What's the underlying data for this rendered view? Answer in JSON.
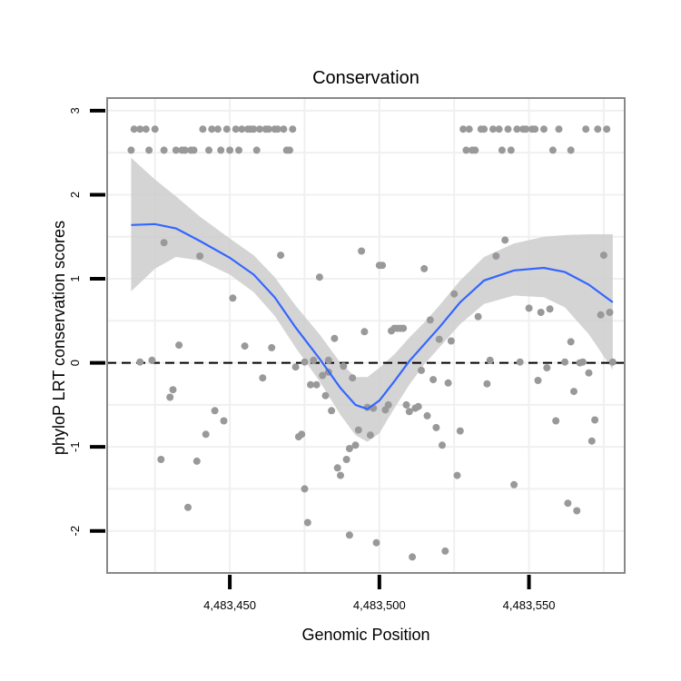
{
  "chart_data": {
    "type": "scatter",
    "title": "Conservation",
    "xlabel": "Genomic Position",
    "ylabel": "phyloP LRT conservation scores",
    "xlim": [
      4483409,
      4483582
    ],
    "ylim": [
      -2.5,
      3.15
    ],
    "x_ticks": [
      {
        "value": 4483450,
        "label": "4,483,450"
      },
      {
        "value": 4483500,
        "label": "4,483,500"
      },
      {
        "value": 4483550,
        "label": "4,483,550"
      }
    ],
    "y_ticks": [
      {
        "value": 3,
        "label": "3"
      },
      {
        "value": 2,
        "label": "2"
      },
      {
        "value": 1,
        "label": "1"
      },
      {
        "value": 0,
        "label": "0"
      },
      {
        "value": -1,
        "label": "-1"
      },
      {
        "value": -2,
        "label": "-2"
      }
    ],
    "grid": true,
    "reference_line": {
      "y": 0,
      "style": "dashed"
    },
    "colors": {
      "points": "#999999",
      "smooth_line": "#3366ff",
      "ribbon": "#cccccc",
      "panel_border": "#888888",
      "grid": "#f0f0f0"
    },
    "series": [
      {
        "type": "scatter",
        "points": [
          {
            "x": 4483417,
            "y": 2.53
          },
          {
            "x": 4483418,
            "y": 2.78
          },
          {
            "x": 4483420,
            "y": 2.78
          },
          {
            "x": 4483420,
            "y": 0.01
          },
          {
            "x": 4483422,
            "y": 2.78
          },
          {
            "x": 4483423,
            "y": 2.53
          },
          {
            "x": 4483424,
            "y": 0.03
          },
          {
            "x": 4483425,
            "y": 2.78
          },
          {
            "x": 4483427,
            "y": -1.15
          },
          {
            "x": 4483428,
            "y": 1.43
          },
          {
            "x": 4483428,
            "y": 2.53
          },
          {
            "x": 4483430,
            "y": -0.41
          },
          {
            "x": 4483431,
            "y": -0.32
          },
          {
            "x": 4483432,
            "y": 2.53
          },
          {
            "x": 4483433,
            "y": 0.21
          },
          {
            "x": 4483434,
            "y": 2.53
          },
          {
            "x": 4483435,
            "y": 2.53
          },
          {
            "x": 4483436,
            "y": -1.72
          },
          {
            "x": 4483437,
            "y": 2.53
          },
          {
            "x": 4483438,
            "y": 2.53
          },
          {
            "x": 4483439,
            "y": -1.17
          },
          {
            "x": 4483440,
            "y": 1.27
          },
          {
            "x": 4483441,
            "y": 2.78
          },
          {
            "x": 4483442,
            "y": -0.85
          },
          {
            "x": 4483443,
            "y": 2.53
          },
          {
            "x": 4483444,
            "y": 2.78
          },
          {
            "x": 4483445,
            "y": -0.57
          },
          {
            "x": 4483446,
            "y": 2.78
          },
          {
            "x": 4483447,
            "y": 2.53
          },
          {
            "x": 4483448,
            "y": -0.69
          },
          {
            "x": 4483449,
            "y": 2.78
          },
          {
            "x": 4483450,
            "y": 2.53
          },
          {
            "x": 4483451,
            "y": 0.77
          },
          {
            "x": 4483452,
            "y": 2.78
          },
          {
            "x": 4483453,
            "y": 2.53
          },
          {
            "x": 4483454,
            "y": 2.78
          },
          {
            "x": 4483455,
            "y": 0.2
          },
          {
            "x": 4483456,
            "y": 2.78
          },
          {
            "x": 4483457,
            "y": 2.78
          },
          {
            "x": 4483458,
            "y": 2.78
          },
          {
            "x": 4483459,
            "y": 2.53
          },
          {
            "x": 4483460,
            "y": 2.78
          },
          {
            "x": 4483461,
            "y": -0.18
          },
          {
            "x": 4483462,
            "y": 2.78
          },
          {
            "x": 4483463,
            "y": 2.78
          },
          {
            "x": 4483464,
            "y": 0.18
          },
          {
            "x": 4483465,
            "y": 2.78
          },
          {
            "x": 4483466,
            "y": 2.78
          },
          {
            "x": 4483467,
            "y": 1.28
          },
          {
            "x": 4483468,
            "y": 2.78
          },
          {
            "x": 4483469,
            "y": 2.53
          },
          {
            "x": 4483470,
            "y": 2.53
          },
          {
            "x": 4483471,
            "y": 2.78
          },
          {
            "x": 4483472,
            "y": -0.05
          },
          {
            "x": 4483473,
            "y": -0.88
          },
          {
            "x": 4483474,
            "y": -0.85
          },
          {
            "x": 4483475,
            "y": 0.01
          },
          {
            "x": 4483475,
            "y": -1.5
          },
          {
            "x": 4483476,
            "y": -1.9
          },
          {
            "x": 4483477,
            "y": -0.26
          },
          {
            "x": 4483478,
            "y": 0.03
          },
          {
            "x": 4483479,
            "y": -0.26
          },
          {
            "x": 4483480,
            "y": 1.02
          },
          {
            "x": 4483481,
            "y": -0.15
          },
          {
            "x": 4483482,
            "y": -0.39
          },
          {
            "x": 4483483,
            "y": 0.03
          },
          {
            "x": 4483483,
            "y": -0.11
          },
          {
            "x": 4483484,
            "y": -0.57
          },
          {
            "x": 4483485,
            "y": 0.29
          },
          {
            "x": 4483486,
            "y": -1.25
          },
          {
            "x": 4483487,
            "y": -1.34
          },
          {
            "x": 4483488,
            "y": -0.04
          },
          {
            "x": 4483489,
            "y": -1.15
          },
          {
            "x": 4483490,
            "y": -2.05
          },
          {
            "x": 4483490,
            "y": -1.02
          },
          {
            "x": 4483491,
            "y": -0.18
          },
          {
            "x": 4483492,
            "y": -0.98
          },
          {
            "x": 4483493,
            "y": -0.8
          },
          {
            "x": 4483494,
            "y": 1.33
          },
          {
            "x": 4483495,
            "y": 0.37
          },
          {
            "x": 4483496,
            "y": -0.53
          },
          {
            "x": 4483497,
            "y": -0.86
          },
          {
            "x": 4483498,
            "y": -0.54
          },
          {
            "x": 4483499,
            "y": -2.14
          },
          {
            "x": 4483500,
            "y": 1.16
          },
          {
            "x": 4483501,
            "y": 1.16
          },
          {
            "x": 4483502,
            "y": -0.56
          },
          {
            "x": 4483503,
            "y": -0.5
          },
          {
            "x": 4483504,
            "y": 0.38
          },
          {
            "x": 4483505,
            "y": 0.41
          },
          {
            "x": 4483506,
            "y": 0.41
          },
          {
            "x": 4483507,
            "y": 0.41
          },
          {
            "x": 4483508,
            "y": 0.41
          },
          {
            "x": 4483509,
            "y": -0.5
          },
          {
            "x": 4483510,
            "y": -0.58
          },
          {
            "x": 4483511,
            "y": -2.31
          },
          {
            "x": 4483512,
            "y": -0.54
          },
          {
            "x": 4483513,
            "y": -0.52
          },
          {
            "x": 4483514,
            "y": -0.09
          },
          {
            "x": 4483515,
            "y": 1.12
          },
          {
            "x": 4483516,
            "y": -0.63
          },
          {
            "x": 4483517,
            "y": 0.51
          },
          {
            "x": 4483518,
            "y": -0.2
          },
          {
            "x": 4483519,
            "y": -0.77
          },
          {
            "x": 4483520,
            "y": 0.28
          },
          {
            "x": 4483521,
            "y": -0.98
          },
          {
            "x": 4483522,
            "y": -2.24
          },
          {
            "x": 4483523,
            "y": -0.24
          },
          {
            "x": 4483524,
            "y": 0.26
          },
          {
            "x": 4483525,
            "y": 0.82
          },
          {
            "x": 4483526,
            "y": -1.34
          },
          {
            "x": 4483527,
            "y": -0.81
          },
          {
            "x": 4483528,
            "y": 2.78
          },
          {
            "x": 4483529,
            "y": 2.53
          },
          {
            "x": 4483530,
            "y": 2.78
          },
          {
            "x": 4483531,
            "y": 2.53
          },
          {
            "x": 4483532,
            "y": 2.53
          },
          {
            "x": 4483533,
            "y": 0.55
          },
          {
            "x": 4483534,
            "y": 2.78
          },
          {
            "x": 4483535,
            "y": 2.78
          },
          {
            "x": 4483536,
            "y": -0.25
          },
          {
            "x": 4483537,
            "y": 0.03
          },
          {
            "x": 4483538,
            "y": 2.78
          },
          {
            "x": 4483539,
            "y": 1.27
          },
          {
            "x": 4483540,
            "y": 2.78
          },
          {
            "x": 4483541,
            "y": 2.53
          },
          {
            "x": 4483542,
            "y": 1.46
          },
          {
            "x": 4483543,
            "y": 2.78
          },
          {
            "x": 4483544,
            "y": 2.53
          },
          {
            "x": 4483545,
            "y": -1.45
          },
          {
            "x": 4483546,
            "y": 2.78
          },
          {
            "x": 4483547,
            "y": 0.01
          },
          {
            "x": 4483548,
            "y": 2.78
          },
          {
            "x": 4483549,
            "y": 2.78
          },
          {
            "x": 4483550,
            "y": 0.65
          },
          {
            "x": 4483551,
            "y": 2.78
          },
          {
            "x": 4483552,
            "y": 2.78
          },
          {
            "x": 4483553,
            "y": -0.21
          },
          {
            "x": 4483554,
            "y": 0.6
          },
          {
            "x": 4483555,
            "y": 2.78
          },
          {
            "x": 4483556,
            "y": -0.06
          },
          {
            "x": 4483557,
            "y": 0.64
          },
          {
            "x": 4483558,
            "y": 2.53
          },
          {
            "x": 4483559,
            "y": -0.69
          },
          {
            "x": 4483560,
            "y": 2.78
          },
          {
            "x": 4483562,
            "y": 0.01
          },
          {
            "x": 4483563,
            "y": -1.67
          },
          {
            "x": 4483564,
            "y": 2.53
          },
          {
            "x": 4483564,
            "y": 0.25
          },
          {
            "x": 4483565,
            "y": -0.34
          },
          {
            "x": 4483566,
            "y": -1.76
          },
          {
            "x": 4483567,
            "y": 0.0
          },
          {
            "x": 4483568,
            "y": 0.01
          },
          {
            "x": 4483569,
            "y": 2.78
          },
          {
            "x": 4483570,
            "y": -0.12
          },
          {
            "x": 4483571,
            "y": -0.93
          },
          {
            "x": 4483572,
            "y": -0.68
          },
          {
            "x": 4483573,
            "y": 2.78
          },
          {
            "x": 4483574,
            "y": 0.57
          },
          {
            "x": 4483575,
            "y": 1.28
          },
          {
            "x": 4483576,
            "y": 2.78
          },
          {
            "x": 4483577,
            "y": 0.6
          },
          {
            "x": 4483578,
            "y": 0.01
          }
        ]
      },
      {
        "type": "smooth",
        "points": [
          {
            "x": 4483417,
            "y": 1.64
          },
          {
            "x": 4483425,
            "y": 1.65
          },
          {
            "x": 4483432,
            "y": 1.6
          },
          {
            "x": 4483440,
            "y": 1.45
          },
          {
            "x": 4483450,
            "y": 1.25
          },
          {
            "x": 4483458,
            "y": 1.05
          },
          {
            "x": 4483465,
            "y": 0.78
          },
          {
            "x": 4483472,
            "y": 0.42
          },
          {
            "x": 4483480,
            "y": 0.05
          },
          {
            "x": 4483487,
            "y": -0.3
          },
          {
            "x": 4483492,
            "y": -0.5
          },
          {
            "x": 4483496,
            "y": -0.55
          },
          {
            "x": 4483500,
            "y": -0.45
          },
          {
            "x": 4483505,
            "y": -0.22
          },
          {
            "x": 4483510,
            "y": 0.02
          },
          {
            "x": 4483515,
            "y": 0.22
          },
          {
            "x": 4483520,
            "y": 0.42
          },
          {
            "x": 4483527,
            "y": 0.72
          },
          {
            "x": 4483535,
            "y": 0.98
          },
          {
            "x": 4483545,
            "y": 1.1
          },
          {
            "x": 4483555,
            "y": 1.13
          },
          {
            "x": 4483562,
            "y": 1.08
          },
          {
            "x": 4483570,
            "y": 0.93
          },
          {
            "x": 4483578,
            "y": 0.72
          }
        ],
        "ribbon": [
          {
            "x": 4483417,
            "lo": 0.85,
            "hi": 2.44
          },
          {
            "x": 4483425,
            "lo": 1.12,
            "hi": 2.18
          },
          {
            "x": 4483432,
            "lo": 1.26,
            "hi": 1.98
          },
          {
            "x": 4483440,
            "lo": 1.22,
            "hi": 1.74
          },
          {
            "x": 4483450,
            "lo": 1.05,
            "hi": 1.48
          },
          {
            "x": 4483458,
            "lo": 0.84,
            "hi": 1.28
          },
          {
            "x": 4483465,
            "lo": 0.56,
            "hi": 1.02
          },
          {
            "x": 4483472,
            "lo": 0.18,
            "hi": 0.68
          },
          {
            "x": 4483480,
            "lo": -0.22,
            "hi": 0.34
          },
          {
            "x": 4483487,
            "lo": -0.62,
            "hi": 0.0
          },
          {
            "x": 4483492,
            "lo": -0.86,
            "hi": -0.17
          },
          {
            "x": 4483496,
            "lo": -0.94,
            "hi": -0.17
          },
          {
            "x": 4483500,
            "lo": -0.84,
            "hi": -0.06
          },
          {
            "x": 4483505,
            "lo": -0.54,
            "hi": 0.1
          },
          {
            "x": 4483510,
            "lo": -0.26,
            "hi": 0.3
          },
          {
            "x": 4483515,
            "lo": -0.02,
            "hi": 0.48
          },
          {
            "x": 4483520,
            "lo": 0.18,
            "hi": 0.68
          },
          {
            "x": 4483527,
            "lo": 0.46,
            "hi": 0.98
          },
          {
            "x": 4483535,
            "lo": 0.7,
            "hi": 1.26
          },
          {
            "x": 4483545,
            "lo": 0.8,
            "hi": 1.42
          },
          {
            "x": 4483555,
            "lo": 0.78,
            "hi": 1.5
          },
          {
            "x": 4483562,
            "lo": 0.66,
            "hi": 1.52
          },
          {
            "x": 4483570,
            "lo": 0.34,
            "hi": 1.53
          },
          {
            "x": 4483578,
            "lo": -0.08,
            "hi": 1.53
          }
        ]
      }
    ]
  }
}
